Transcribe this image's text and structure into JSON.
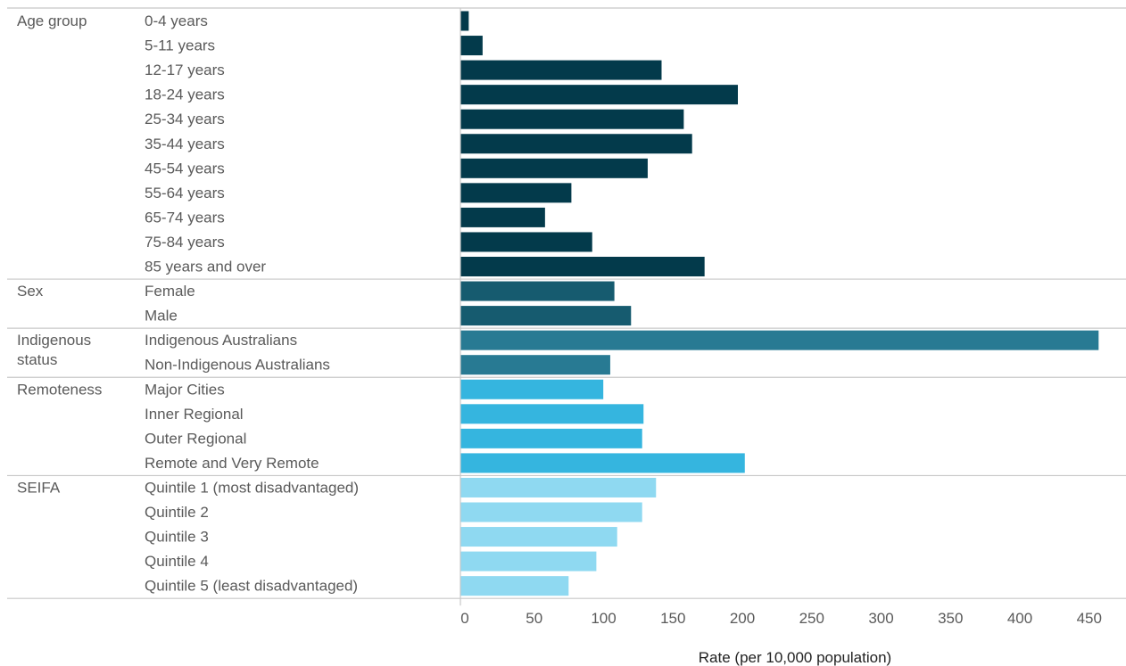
{
  "chart_data": {
    "type": "bar",
    "orientation": "horizontal",
    "xlabel": "Rate (per 10,000 population)",
    "xlim": [
      0,
      460
    ],
    "xticks": [
      0,
      50,
      100,
      150,
      200,
      250,
      300,
      350,
      400,
      450
    ],
    "xtick_labels": [
      "0",
      "50",
      "100",
      "150",
      "200",
      "250",
      "300",
      "350",
      "400",
      "450"
    ],
    "grid": false,
    "legend": "none",
    "groups": [
      {
        "label": "Age group",
        "color": "#033a4b",
        "categories": [
          "0-4 years",
          "5-11 years",
          "12-17 years",
          "18-24 years",
          "25-34 years",
          "35-44 years",
          "45-54 years",
          "55-64 years",
          "65-74 years",
          "75-84 years",
          "85 years and over"
        ],
        "values": [
          6,
          16,
          145,
          200,
          161,
          167,
          135,
          80,
          61,
          95,
          176
        ]
      },
      {
        "label": "Sex",
        "color": "#165b6f",
        "categories": [
          "Female",
          "Male"
        ],
        "values": [
          111,
          123
        ]
      },
      {
        "label": "Indigenous status",
        "color": "#287a93",
        "categories": [
          "Indigenous Australians",
          "Non-Indigenous Australians"
        ],
        "values": [
          460,
          108
        ]
      },
      {
        "label": "Remoteness",
        "color": "#35b5df",
        "categories": [
          "Major Cities",
          "Inner Regional",
          "Outer Regional",
          "Remote and Very Remote"
        ],
        "values": [
          103,
          132,
          131,
          205
        ]
      },
      {
        "label": "SEIFA",
        "color": "#8fd9f1",
        "categories": [
          "Quintile 1 (most  disadvantaged)",
          "Quintile 2",
          "Quintile 3",
          "Quintile 4",
          "Quintile 5 (least  disadvantaged)"
        ],
        "values": [
          141,
          131,
          113,
          98,
          78
        ]
      }
    ]
  }
}
